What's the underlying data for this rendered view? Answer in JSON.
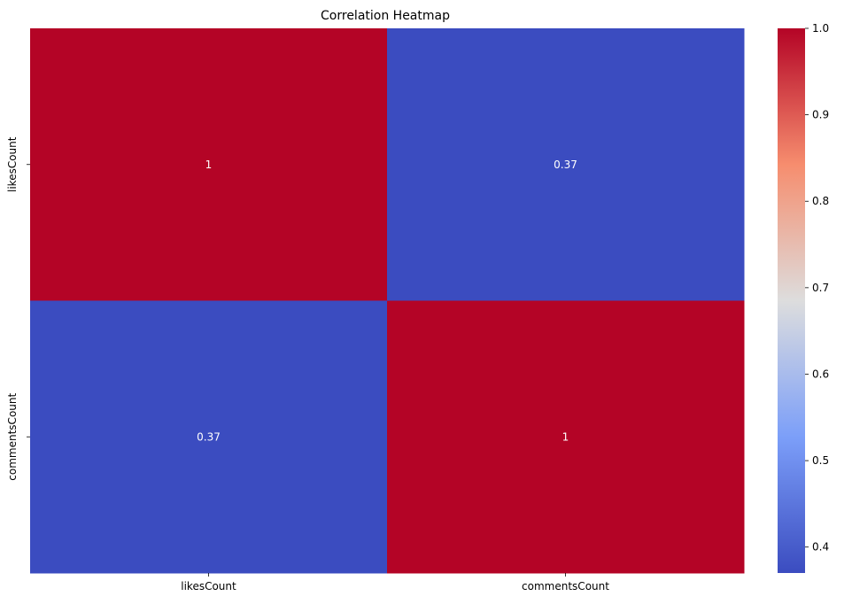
{
  "chart_data": {
    "type": "heatmap",
    "title": "Correlation Heatmap",
    "rows": [
      "likesCount",
      "commentsCount"
    ],
    "columns": [
      "likesCount",
      "commentsCount"
    ],
    "values": [
      [
        1,
        0.37
      ],
      [
        0.37,
        1
      ]
    ],
    "cell_labels": [
      [
        "1",
        "0.37"
      ],
      [
        "0.37",
        "1"
      ]
    ],
    "colormap": "coolwarm",
    "colorbar": {
      "range": [
        0.37,
        1.0
      ],
      "ticks": [
        0.4,
        0.5,
        0.6,
        0.7,
        0.8,
        0.9,
        1.0
      ],
      "tick_labels": [
        "0.4",
        "0.5",
        "0.6",
        "0.7",
        "0.8",
        "0.9",
        "1.0"
      ]
    },
    "colors": {
      "low": "#3b4cc0",
      "mid": "#dddddd",
      "high": "#b40426"
    }
  }
}
